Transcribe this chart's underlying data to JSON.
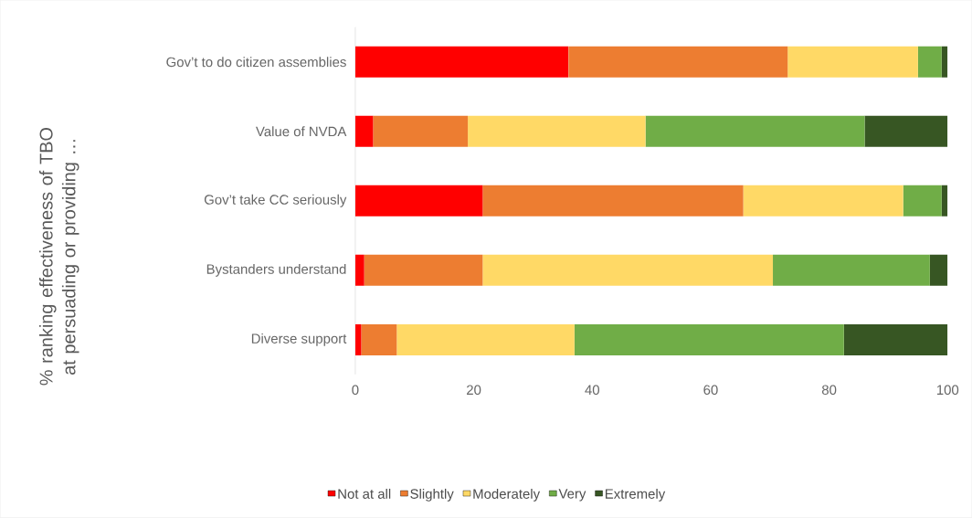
{
  "chart_data": {
    "type": "bar",
    "orientation": "horizontal",
    "stacked": true,
    "ylabel": "% ranking effectiveness of TBO at persuading or providing …",
    "categories": [
      "Gov’t to do citizen assemblies",
      "Value of NVDA",
      "Gov’t take CC seriously",
      "Bystanders understand",
      "Diverse support"
    ],
    "series": [
      {
        "name": "Not at all",
        "color": "#ff0000",
        "values": [
          36,
          3,
          21.5,
          1.5,
          1
        ]
      },
      {
        "name": "Slightly",
        "color": "#ed7d31",
        "values": [
          37,
          16,
          44,
          20,
          6
        ]
      },
      {
        "name": "Moderately",
        "color": "#ffd966",
        "values": [
          22,
          30,
          27,
          49,
          30
        ]
      },
      {
        "name": "Very",
        "color": "#70ad47",
        "values": [
          4,
          37,
          6.5,
          26.5,
          45.5
        ]
      },
      {
        "name": "Extremely",
        "color": "#375623",
        "values": [
          1,
          14,
          1,
          3,
          17.5
        ]
      }
    ],
    "xlim": [
      0,
      100
    ],
    "xticks": [
      0,
      20,
      40,
      60,
      80,
      100
    ],
    "grid": false,
    "legend": "bottom"
  }
}
